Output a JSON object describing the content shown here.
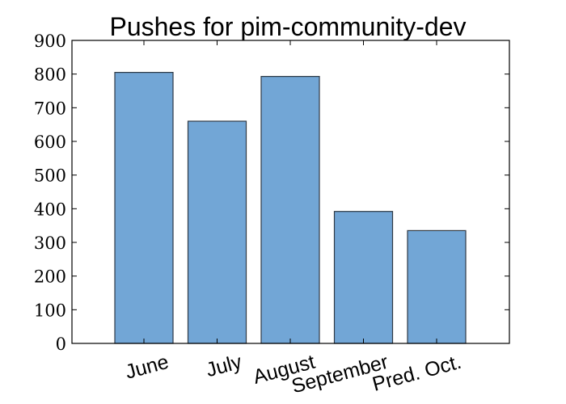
{
  "chart_data": {
    "type": "bar",
    "title": "Pushes for pim-community-dev",
    "xlabel": "",
    "ylabel": "",
    "categories": [
      "June",
      "July",
      "August",
      "September",
      "Pred. Oct."
    ],
    "values": [
      805,
      660,
      793,
      392,
      335
    ],
    "ylim": [
      0,
      900
    ],
    "yticks": [
      0,
      100,
      200,
      300,
      400,
      500,
      600,
      700,
      800,
      900
    ],
    "grid": false,
    "bar_color": "#72a6d6",
    "edge_color": "#2f3a45"
  }
}
